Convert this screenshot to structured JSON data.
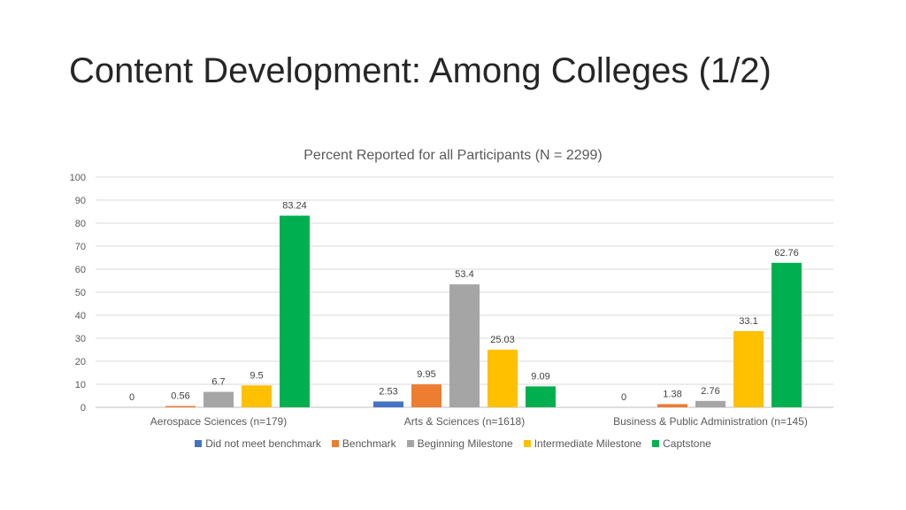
{
  "page": {
    "title": "Content Development: Among Colleges (1/2)"
  },
  "chart_data": {
    "type": "bar",
    "title": "Percent Reported for all Participants (N = 2299)",
    "xlabel": "",
    "ylabel": "",
    "ylim": [
      0,
      100
    ],
    "yticks": [
      0,
      10,
      20,
      30,
      40,
      50,
      60,
      70,
      80,
      90,
      100
    ],
    "grid": true,
    "legend_position": "bottom",
    "categories": [
      "Aerospace Sciences (n=179)",
      "Arts & Sciences (n=1618)",
      "Business & Public Administration (n=145)"
    ],
    "series": [
      {
        "name": "Did not meet benchmark",
        "color": "#4472C4",
        "values": [
          0,
          2.53,
          0
        ]
      },
      {
        "name": "Benchmark",
        "color": "#ED7D31",
        "values": [
          0.56,
          9.95,
          1.38
        ]
      },
      {
        "name": "Beginning Milestone",
        "color": "#A5A5A5",
        "values": [
          6.7,
          53.4,
          2.76
        ]
      },
      {
        "name": "Intermediate Milestone",
        "color": "#FFC000",
        "values": [
          9.5,
          25.03,
          33.1
        ]
      },
      {
        "name": "Captstone",
        "color": "#00B050",
        "values": [
          83.24,
          9.09,
          62.76
        ]
      }
    ]
  }
}
